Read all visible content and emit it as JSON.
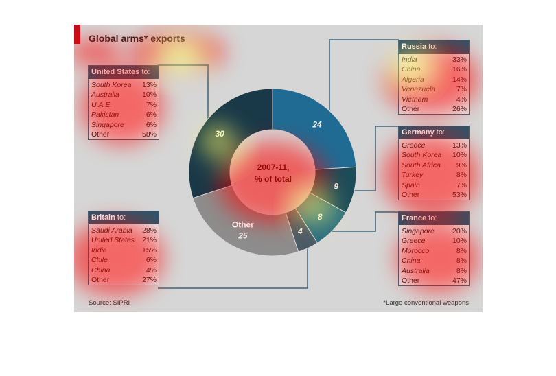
{
  "colors": {
    "accent": "#c0101a",
    "background": "#d6d6d6",
    "box_header": "#2f5468",
    "heatmap_overlay": [
      "#ff0000",
      "#ffff66"
    ]
  },
  "title": "Global arms* exports",
  "source": "Source: SIPRI",
  "footnote": "*Large conventional weapons",
  "chart_data": [
    {
      "type": "pie",
      "variant": "donut",
      "center_label": [
        "2007-11,",
        "% of total"
      ],
      "slices": [
        {
          "label": "",
          "value": 24,
          "value_label": "24",
          "color": "#1f6b94"
        },
        {
          "label": "",
          "value": 9,
          "value_label": "9",
          "color": "#1c4c5a"
        },
        {
          "label": "",
          "value": 8,
          "value_label": "8",
          "color": "#2e6f80"
        },
        {
          "label": "",
          "value": 4,
          "value_label": "4",
          "color": "#4b5a66"
        },
        {
          "label": "Other",
          "value": 25,
          "value_label": "25",
          "color": "#8d8d8d"
        },
        {
          "label": "",
          "value": 30,
          "value_label": "30",
          "color": "#193848"
        }
      ]
    },
    {
      "type": "table",
      "country": "United States",
      "suffix": "to:",
      "rows": [
        {
          "name": "South Korea",
          "value": "13%"
        },
        {
          "name": "Australia",
          "value": "10%"
        },
        {
          "name": "U.A.E.",
          "value": "7%"
        },
        {
          "name": "Pakistan",
          "value": "6%"
        },
        {
          "name": "Singapore",
          "value": "6%"
        },
        {
          "name": "Other",
          "value": "58%"
        }
      ]
    },
    {
      "type": "table",
      "country": "Russia",
      "suffix": "to:",
      "rows": [
        {
          "name": "India",
          "value": "33%"
        },
        {
          "name": "China",
          "value": "16%"
        },
        {
          "name": "Algeria",
          "value": "14%"
        },
        {
          "name": "Venezuela",
          "value": "7%"
        },
        {
          "name": "Vietnam",
          "value": "4%"
        },
        {
          "name": "Other",
          "value": "26%"
        }
      ]
    },
    {
      "type": "table",
      "country": "Germany",
      "suffix": "to:",
      "rows": [
        {
          "name": "Greece",
          "value": "13%"
        },
        {
          "name": "South Korea",
          "value": "10%"
        },
        {
          "name": "South Africa",
          "value": "9%"
        },
        {
          "name": "Turkey",
          "value": "8%"
        },
        {
          "name": "Spain",
          "value": "7%"
        },
        {
          "name": "Other",
          "value": "53%"
        }
      ]
    },
    {
      "type": "table",
      "country": "Britain",
      "suffix": "to:",
      "rows": [
        {
          "name": "Saudi Arabia",
          "value": "28%"
        },
        {
          "name": "United States",
          "value": "21%"
        },
        {
          "name": "India",
          "value": "15%"
        },
        {
          "name": "Chile",
          "value": "6%"
        },
        {
          "name": "China",
          "value": "4%"
        },
        {
          "name": "Other",
          "value": "27%"
        }
      ]
    },
    {
      "type": "table",
      "country": "France",
      "suffix": "to:",
      "rows": [
        {
          "name": "Singapore",
          "value": "20%"
        },
        {
          "name": "Greece",
          "value": "10%"
        },
        {
          "name": "Morocco",
          "value": "8%"
        },
        {
          "name": "China",
          "value": "8%"
        },
        {
          "name": "Australia",
          "value": "8%"
        },
        {
          "name": "Other",
          "value": "47%"
        }
      ]
    }
  ]
}
